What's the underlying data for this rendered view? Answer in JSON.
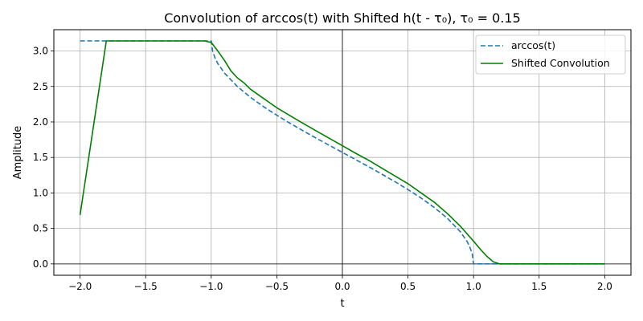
{
  "chart_data": {
    "type": "line",
    "title": "Convolution of arccos(t) with Shifted h(t - τ₀), τ₀ = 0.15",
    "xlabel": "t",
    "ylabel": "Amplitude",
    "xlim": [
      -2.2,
      2.2
    ],
    "ylim": [
      -0.16,
      3.3
    ],
    "xticks": [
      -2.0,
      -1.5,
      -1.0,
      -0.5,
      0.0,
      0.5,
      1.0,
      1.5,
      2.0
    ],
    "xtick_labels": [
      "−2.0",
      "−1.5",
      "−1.0",
      "−0.5",
      "0.0",
      "0.5",
      "1.0",
      "1.5",
      "2.0"
    ],
    "yticks": [
      0.0,
      0.5,
      1.0,
      1.5,
      2.0,
      2.5,
      3.0
    ],
    "ytick_labels": [
      "0.0",
      "0.5",
      "1.0",
      "1.5",
      "2.0",
      "2.5",
      "3.0"
    ],
    "grid": true,
    "reference_lines": {
      "x": 0,
      "y": 0
    },
    "legend_position": "top-right",
    "series": [
      {
        "name": "arccos(t)",
        "color": "#1f77b4",
        "style": "dashed",
        "points": [
          [
            -2.0,
            3.1416
          ],
          [
            -1.0,
            3.1416
          ],
          [
            -0.99,
            3.0
          ],
          [
            -0.97,
            2.8966
          ],
          [
            -0.95,
            2.824
          ],
          [
            -0.9,
            2.6906
          ],
          [
            -0.8,
            2.4981
          ],
          [
            -0.7,
            2.3462
          ],
          [
            -0.6,
            2.2143
          ],
          [
            -0.5,
            2.0944
          ],
          [
            -0.4,
            1.9823
          ],
          [
            -0.3,
            1.8755
          ],
          [
            -0.2,
            1.7722
          ],
          [
            -0.1,
            1.671
          ],
          [
            0.0,
            1.5708
          ],
          [
            0.1,
            1.4706
          ],
          [
            0.2,
            1.3694
          ],
          [
            0.3,
            1.2661
          ],
          [
            0.4,
            1.1593
          ],
          [
            0.5,
            1.0472
          ],
          [
            0.6,
            0.9273
          ],
          [
            0.7,
            0.7954
          ],
          [
            0.8,
            0.6435
          ],
          [
            0.9,
            0.451
          ],
          [
            0.95,
            0.3176
          ],
          [
            0.97,
            0.2451
          ],
          [
            0.99,
            0.1415
          ],
          [
            1.0,
            0.0
          ],
          [
            2.0,
            0.0
          ]
        ]
      },
      {
        "name": "Shifted Convolution",
        "color": "#008000",
        "style": "solid",
        "points": [
          [
            -2.0,
            0.69
          ],
          [
            -1.8,
            3.1416
          ],
          [
            -1.05,
            3.1416
          ],
          [
            -1.0,
            3.12
          ],
          [
            -0.95,
            3.0
          ],
          [
            -0.9,
            2.87
          ],
          [
            -0.85,
            2.72
          ],
          [
            -0.8,
            2.62
          ],
          [
            -0.75,
            2.55
          ],
          [
            -0.7,
            2.46
          ],
          [
            -0.6,
            2.33
          ],
          [
            -0.5,
            2.2
          ],
          [
            -0.4,
            2.09
          ],
          [
            -0.3,
            1.98
          ],
          [
            -0.2,
            1.875
          ],
          [
            -0.1,
            1.77
          ],
          [
            0.0,
            1.665
          ],
          [
            0.1,
            1.56
          ],
          [
            0.2,
            1.46
          ],
          [
            0.3,
            1.35
          ],
          [
            0.4,
            1.24
          ],
          [
            0.5,
            1.13
          ],
          [
            0.6,
            1.0
          ],
          [
            0.7,
            0.87
          ],
          [
            0.8,
            0.71
          ],
          [
            0.9,
            0.53
          ],
          [
            1.0,
            0.32
          ],
          [
            1.05,
            0.21
          ],
          [
            1.1,
            0.11
          ],
          [
            1.15,
            0.03
          ],
          [
            1.2,
            0.0
          ],
          [
            2.0,
            0.0
          ]
        ]
      }
    ]
  }
}
